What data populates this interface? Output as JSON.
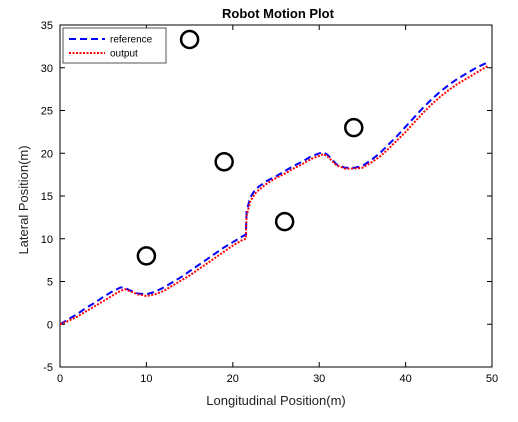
{
  "chart_data": {
    "type": "line",
    "title": "Robot Motion Plot",
    "xlabel": "Longitudinal Position(m)",
    "ylabel": "Lateral Position(m)",
    "xlim": [
      0,
      50
    ],
    "ylim": [
      -5,
      35
    ],
    "xticks": [
      0,
      10,
      20,
      30,
      40,
      50
    ],
    "yticks": [
      -5,
      0,
      5,
      10,
      15,
      20,
      25,
      30,
      35
    ],
    "grid": false,
    "legend_position": "top-left",
    "series": [
      {
        "name": "reference",
        "style": "dashed",
        "color": "#0000ff",
        "x": [
          0,
          1,
          2,
          3,
          4,
          5,
          6,
          7,
          7.5,
          8,
          9,
          10,
          11,
          12,
          13,
          14,
          15,
          16,
          17,
          18,
          19,
          20,
          21,
          21.5,
          21.6,
          22,
          22.5,
          23,
          24,
          25,
          26,
          27,
          28,
          29,
          30,
          30.5,
          31,
          32,
          33,
          34,
          35,
          36,
          37,
          38,
          39,
          40,
          41,
          42,
          43,
          44,
          45,
          46,
          47,
          48,
          49,
          49.5
        ],
        "y": [
          0,
          0.6,
          1.2,
          1.9,
          2.5,
          3.2,
          3.8,
          4.3,
          4.3,
          4.0,
          3.6,
          3.5,
          3.8,
          4.3,
          4.9,
          5.5,
          6.2,
          6.9,
          7.6,
          8.3,
          9.0,
          9.6,
          10.2,
          10.5,
          13.2,
          14.8,
          15.6,
          16.1,
          16.8,
          17.3,
          17.9,
          18.5,
          19.0,
          19.6,
          20.0,
          20.1,
          19.8,
          18.7,
          18.3,
          18.3,
          18.5,
          19.2,
          20.0,
          21.0,
          22.0,
          23.1,
          24.2,
          25.3,
          26.3,
          27.2,
          28.0,
          28.7,
          29.3,
          29.9,
          30.4,
          30.6
        ]
      },
      {
        "name": "output",
        "style": "dotted",
        "color": "#ff0000",
        "x": [
          0,
          1,
          2,
          3,
          4,
          5,
          6,
          7,
          7.5,
          8,
          9,
          10,
          11,
          12,
          13,
          14,
          15,
          16,
          17,
          18,
          19,
          20,
          21,
          21.5,
          21.6,
          22,
          22.5,
          23,
          24,
          25,
          26,
          27,
          28,
          29,
          30,
          30.5,
          31,
          32,
          33,
          34,
          35,
          36,
          37,
          38,
          39,
          40,
          41,
          42,
          43,
          44,
          45,
          46,
          47,
          48,
          49,
          49.5
        ],
        "y": [
          0,
          0.4,
          0.9,
          1.5,
          2.1,
          2.7,
          3.3,
          3.9,
          4.1,
          3.9,
          3.5,
          3.3,
          3.5,
          3.9,
          4.5,
          5.1,
          5.7,
          6.4,
          7.1,
          7.8,
          8.5,
          9.2,
          9.8,
          10.0,
          12.7,
          14.3,
          15.2,
          15.7,
          16.5,
          17.1,
          17.6,
          18.2,
          18.7,
          19.3,
          19.7,
          19.9,
          19.6,
          18.6,
          18.2,
          18.2,
          18.3,
          18.9,
          19.6,
          20.5,
          21.5,
          22.5,
          23.6,
          24.7,
          25.7,
          26.6,
          27.4,
          28.1,
          28.7,
          29.3,
          29.9,
          30.2
        ]
      }
    ],
    "obstacles": [
      {
        "x": 10,
        "y": 8
      },
      {
        "x": 15,
        "y": 33.3
      },
      {
        "x": 19,
        "y": 19
      },
      {
        "x": 26,
        "y": 12
      },
      {
        "x": 34,
        "y": 23
      }
    ]
  },
  "colors": {
    "axis": "#000000",
    "reference": "#0000ff",
    "output": "#ff0000",
    "obstacle": "#000000"
  }
}
